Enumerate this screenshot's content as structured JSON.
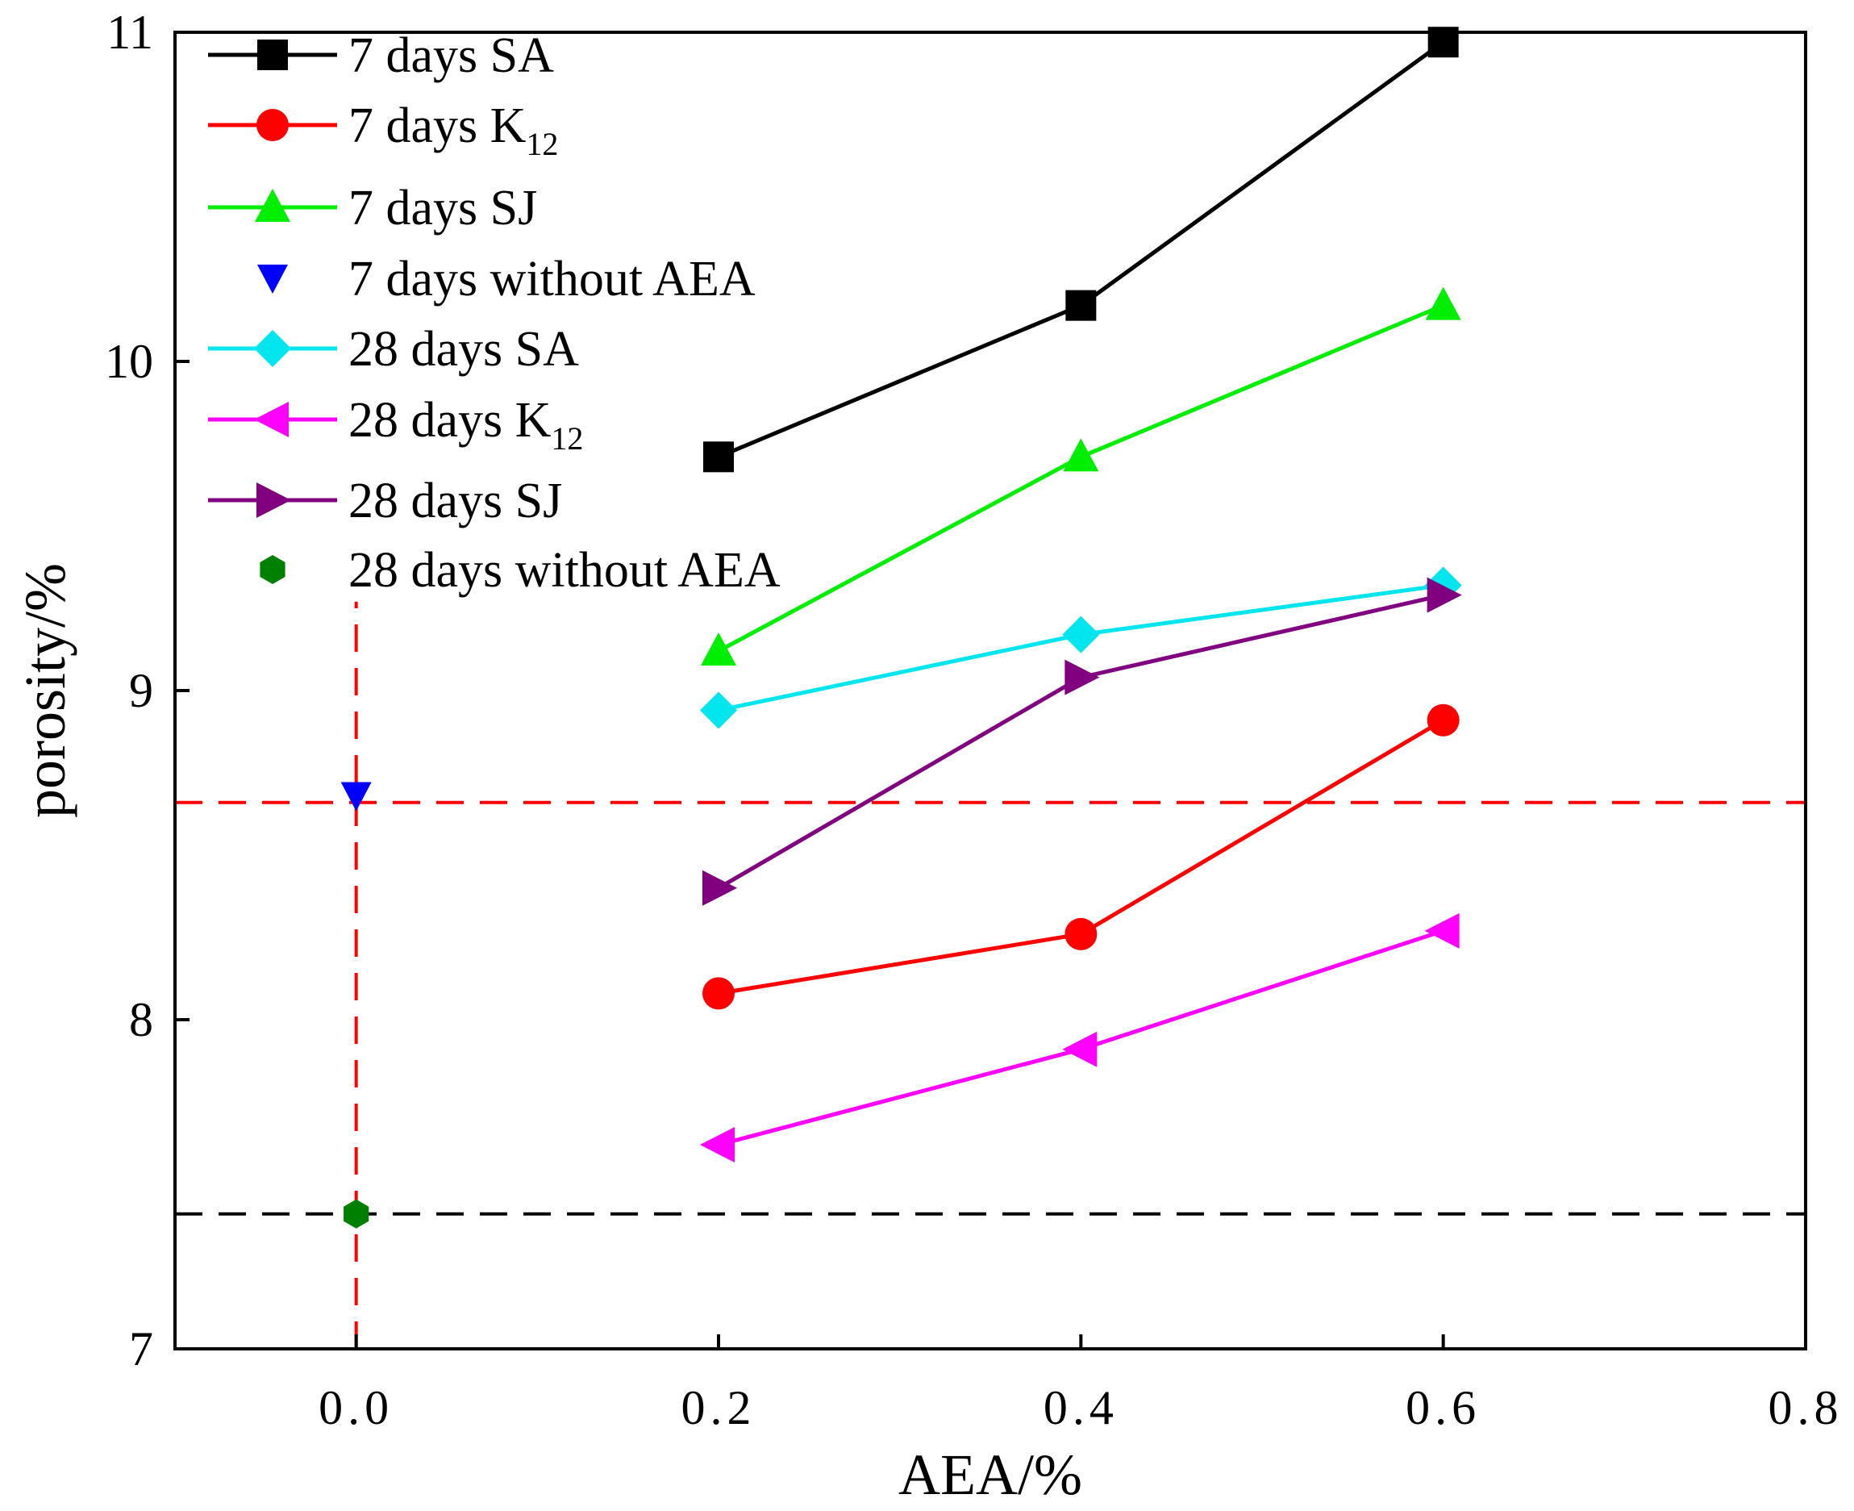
{
  "chart_data": {
    "type": "line",
    "title": "",
    "xlabel": "AEA/%",
    "ylabel": "porosity/%",
    "xlim": [
      -0.1,
      0.8
    ],
    "ylim": [
      7,
      11
    ],
    "xticks": [
      "0.0",
      "0.2",
      "0.4",
      "0.6",
      "0.8"
    ],
    "xtick_values": [
      0.0,
      0.2,
      0.4,
      0.6,
      0.8
    ],
    "yticks": [
      "7",
      "8",
      "9",
      "10",
      "11"
    ],
    "ytick_values": [
      7,
      8,
      9,
      10,
      11
    ],
    "legend_position": "top-left",
    "series": [
      {
        "name": "7 days SA",
        "label_main": "7 days SA",
        "label_sub": "",
        "color": "#000000",
        "marker": "square",
        "line": true,
        "x": [
          0.2,
          0.4,
          0.6
        ],
        "y": [
          9.71,
          10.17,
          10.97
        ]
      },
      {
        "name": "7 days K12",
        "label_main": "7 days K",
        "label_sub": "12",
        "color": "#ff0000",
        "marker": "circle",
        "line": true,
        "x": [
          0.2,
          0.4,
          0.6
        ],
        "y": [
          8.08,
          8.26,
          8.91
        ]
      },
      {
        "name": "7 days SJ",
        "label_main": "7 days SJ",
        "label_sub": "",
        "color": "#00ee00",
        "marker": "triangle-up",
        "line": true,
        "x": [
          0.2,
          0.4,
          0.6
        ],
        "y": [
          9.12,
          9.71,
          10.17
        ]
      },
      {
        "name": "7 days without AEA",
        "label_main": "7 days without AEA",
        "label_sub": "",
        "color": "#0000ff",
        "marker": "triangle-down",
        "line": false,
        "x": [
          0.0
        ],
        "y": [
          8.68
        ]
      },
      {
        "name": "28 days SA",
        "label_main": "28 days SA",
        "label_sub": "",
        "color": "#00e5ee",
        "marker": "diamond",
        "line": true,
        "x": [
          0.2,
          0.4,
          0.6
        ],
        "y": [
          8.94,
          9.17,
          9.32
        ]
      },
      {
        "name": "28 days K12",
        "label_main": "28 days K",
        "label_sub": "12",
        "color": "#ff00ff",
        "marker": "triangle-left",
        "line": true,
        "x": [
          0.2,
          0.4,
          0.6
        ],
        "y": [
          7.62,
          7.91,
          8.27
        ]
      },
      {
        "name": "28 days SJ",
        "label_main": "28 days SJ",
        "label_sub": "",
        "color": "#800080",
        "marker": "triangle-right",
        "line": true,
        "x": [
          0.2,
          0.4,
          0.6
        ],
        "y": [
          8.4,
          9.04,
          9.29
        ]
      },
      {
        "name": "28 days without AEA",
        "label_main": "28 days without AEA",
        "label_sub": "",
        "color": "#008000",
        "marker": "hexagon",
        "line": false,
        "x": [
          0.0
        ],
        "y": [
          7.41
        ]
      }
    ],
    "reference_lines": [
      {
        "name": "7 days without AEA level",
        "orientation": "horizontal",
        "value": 8.66,
        "color": "#ff0000",
        "style": "dashed"
      },
      {
        "name": "28 days without AEA level",
        "orientation": "horizontal",
        "value": 7.41,
        "color": "#000000",
        "style": "dashed"
      },
      {
        "name": "zero AEA line",
        "orientation": "vertical",
        "value": 0.0,
        "color": "#ff0000",
        "style": "dashed",
        "ymax": 9.27
      }
    ]
  }
}
